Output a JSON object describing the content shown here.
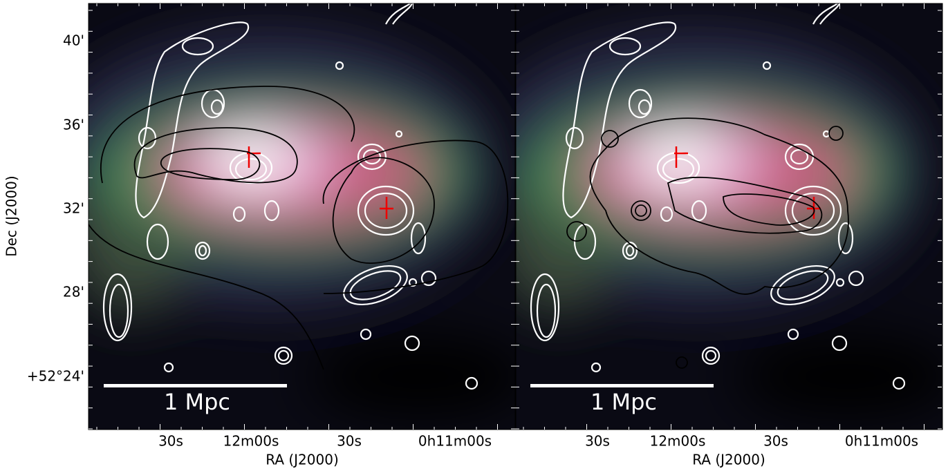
{
  "y_label": "Dec (J2000)",
  "y_ticks": [
    "40'",
    "36'",
    "32'",
    "28'",
    "+52°24'"
  ],
  "panels": [
    {
      "x_label": "RA (J2000)",
      "x_ticks": [
        "30s",
        "12m00s",
        "30s",
        "0h11m00s"
      ],
      "scale_bar": "1 Mpc"
    },
    {
      "x_label": "RA (J2000)",
      "x_ticks": [
        "30s",
        "12m00s",
        "30s",
        "0h11m00s"
      ],
      "scale_bar": "1 Mpc"
    }
  ]
}
